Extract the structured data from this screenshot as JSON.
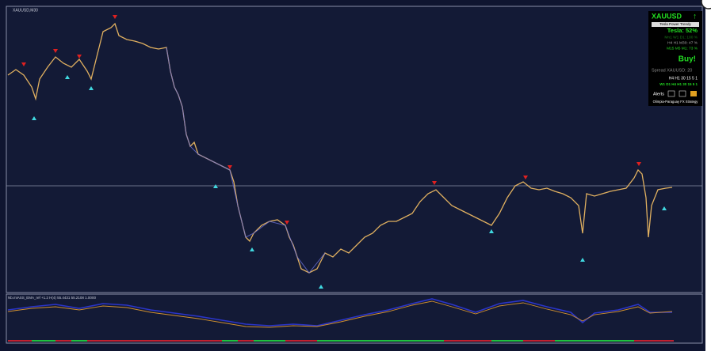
{
  "window": {
    "symbol_label": "XAUUSD,M30"
  },
  "panel": {
    "symbol": "XAUUSD",
    "subtitle": "Tesla Power Trendy",
    "tesla": "Tesla: 52%",
    "lines": [
      "Mn1 W1 D1: 100 %",
      "H4 H1 M30: 47 %",
      "M15 M5 M1: 73 %"
    ],
    "signal": "Buy!",
    "spread": "Spread XAUUSD: 20",
    "timeframes": "H4 H1 30 15 5 1",
    "timeframes_colored": "W1 D1 H4 H1 30 15 5 1",
    "alerts": "Alerts",
    "footer": "Olimpia-Paraguay FX Strategy"
  },
  "indicator": {
    "label": "Nb.miASS_EMA_ref +1.2 H(4) 55.4431 55.2108 1.0000"
  }
}
